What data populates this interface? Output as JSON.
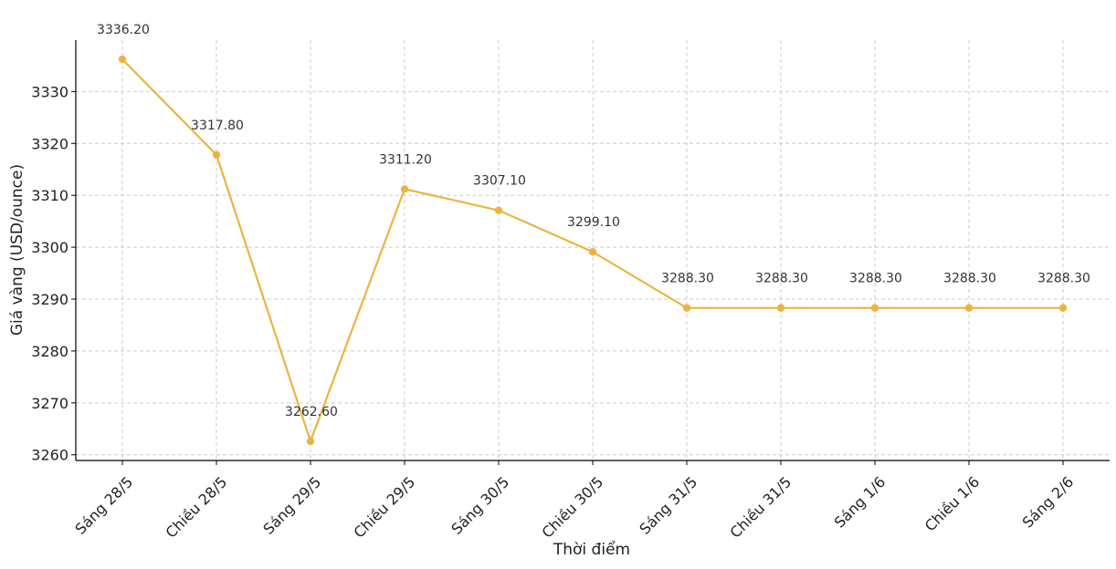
{
  "chart_data": {
    "type": "line",
    "xlabel": "Thời điểm",
    "ylabel": "Giá vàng (USD/ounce)",
    "categories": [
      "Sáng 28/5",
      "Chiều 28/5",
      "Sáng 29/5",
      "Chiều 29/5",
      "Sáng 30/5",
      "Chiều 30/5",
      "Sáng 31/5",
      "Chiều 31/5",
      "Sáng 1/6",
      "Chiều 1/6",
      "Sáng 2/6"
    ],
    "values": [
      3336.2,
      3317.8,
      3262.6,
      3311.2,
      3307.1,
      3299.1,
      3288.3,
      3288.3,
      3288.3,
      3288.3,
      3288.3
    ],
    "data_labels": [
      "3336.20",
      "3317.80",
      "3262.60",
      "3311.20",
      "3307.10",
      "3299.10",
      "3288.30",
      "3288.30",
      "3288.30",
      "3288.30",
      "3288.30"
    ],
    "yticks": [
      3260,
      3270,
      3280,
      3290,
      3300,
      3310,
      3320,
      3330
    ],
    "ylim": [
      3258.9,
      3339.9
    ],
    "grid": true,
    "color": "#EBB441"
  }
}
